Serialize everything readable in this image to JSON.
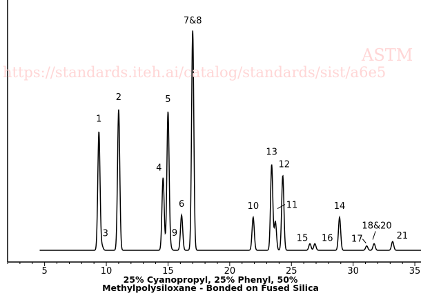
{
  "watermark": {
    "brand": "ASTM",
    "url": "https://standards.iteh.ai/catalog/standards/sist/a6e5"
  },
  "caption": {
    "line1": "25% Cyanopropyl, 25% Phenyl, 50%",
    "line2": "Methylpolysiloxane - Bonded on Fused Silica"
  },
  "colors": {
    "trace": "#000000",
    "watermark": "#ffd6d6"
  },
  "chart_data": {
    "type": "line",
    "title": "",
    "xlabel": "",
    "ylabel": "",
    "xlim": [
      2,
      35.5
    ],
    "ylim": [
      0,
      100
    ],
    "x_ticks": [
      5,
      10,
      15,
      20,
      25,
      30,
      35
    ],
    "baseline": 0,
    "peaks": [
      {
        "label": "1",
        "x": 9.4,
        "y": 54
      },
      {
        "label": "3",
        "x": 9.65,
        "y": 2
      },
      {
        "label": "2",
        "x": 11.0,
        "y": 64
      },
      {
        "label": "4",
        "x": 14.6,
        "y": 33
      },
      {
        "label": "5",
        "x": 15.0,
        "y": 63
      },
      {
        "label": "9",
        "x": 15.2,
        "y": 1.5
      },
      {
        "label": "6",
        "x": 16.1,
        "y": 16
      },
      {
        "label": "7&8",
        "x": 17.0,
        "y": 100
      },
      {
        "label": "10",
        "x": 21.9,
        "y": 15
      },
      {
        "label": "13",
        "x": 23.4,
        "y": 39
      },
      {
        "label": "11",
        "x": 23.7,
        "y": 13
      },
      {
        "label": "12",
        "x": 24.3,
        "y": 34
      },
      {
        "label": "15",
        "x": 26.5,
        "y": 3
      },
      {
        "label": "16",
        "x": 26.9,
        "y": 3
      },
      {
        "label": "14",
        "x": 28.9,
        "y": 15
      },
      {
        "label": "17",
        "x": 31.1,
        "y": 2
      },
      {
        "label": "18&20",
        "x": 31.7,
        "y": 3
      },
      {
        "label": "21",
        "x": 33.2,
        "y": 4
      }
    ]
  }
}
